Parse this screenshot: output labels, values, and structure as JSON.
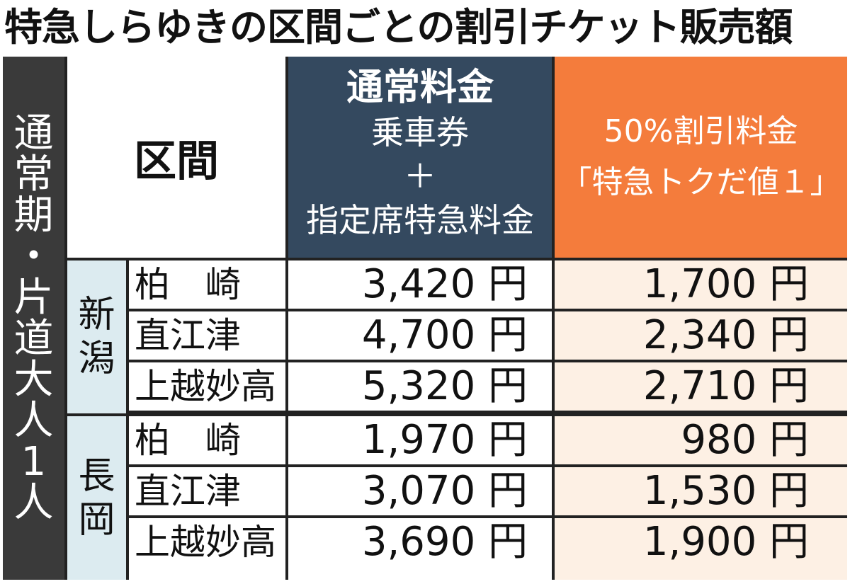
{
  "title": "特急しらゆきの区間ごとの割引チケット販売額",
  "side_label": [
    "通",
    "常",
    "期",
    "・",
    "片",
    "道",
    "大",
    "人",
    "1",
    "人"
  ],
  "header": {
    "section": "区間",
    "normal": [
      "通常料金",
      "乗車券",
      "＋",
      "指定席特急料金"
    ],
    "discount": [
      "50%割引料金",
      "「特急トクだ値１」"
    ]
  },
  "groups": [
    {
      "name": [
        "新",
        "潟"
      ]
    },
    {
      "name": [
        "長",
        "岡"
      ]
    }
  ],
  "rows": [
    {
      "station": "柏　崎",
      "normal": "3,420 円",
      "discount": "1,700 円"
    },
    {
      "station": "直江津",
      "normal": "4,700 円",
      "discount": "2,340 円"
    },
    {
      "station": "上越妙高",
      "normal": "5,320 円",
      "discount": "2,710 円"
    },
    {
      "station": "柏　崎",
      "normal": "1,970 円",
      "discount": "980 円"
    },
    {
      "station": "直江津",
      "normal": "3,070 円",
      "discount": "1,530 円"
    },
    {
      "station": "上越妙高",
      "normal": "3,690 円",
      "discount": "1,900 円"
    }
  ],
  "colors": {
    "normal_header": "#34495f",
    "discount_header": "#f47c3c",
    "discount_cells": "#fdf0e4",
    "group_cells": "#dcebf0"
  },
  "chart_data": {
    "type": "table",
    "title": "特急しらゆきの区間ごとの割引チケット販売額",
    "columns": [
      "区間",
      "通常料金 乗車券＋指定席特急料金",
      "50%割引料金「特急トクだ値１」"
    ],
    "rows": [
      [
        "新潟",
        "柏崎",
        3420,
        1700
      ],
      [
        "新潟",
        "直江津",
        4700,
        2340
      ],
      [
        "新潟",
        "上越妙高",
        5320,
        2710
      ],
      [
        "長岡",
        "柏崎",
        1970,
        980
      ],
      [
        "長岡",
        "直江津",
        3070,
        1530
      ],
      [
        "長岡",
        "上越妙高",
        3690,
        1900
      ]
    ],
    "unit": "円"
  }
}
